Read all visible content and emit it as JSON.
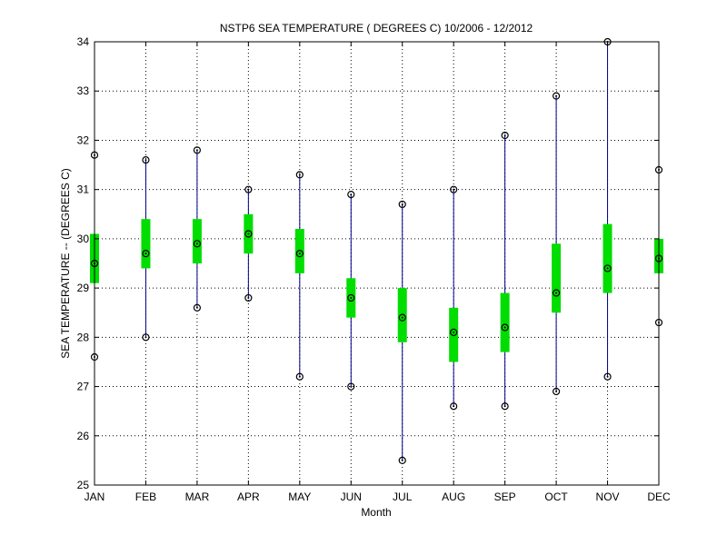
{
  "chart_data": {
    "type": "box",
    "title": "NSTP6  SEA TEMPERATURE ( DEGREES C) 10/2006 - 12/2012",
    "xlabel": "Month",
    "ylabel": "SEA TEMPERATURE -- (DEGREES C)",
    "ylim": [
      25,
      34
    ],
    "yticks": [
      "25",
      "26",
      "27",
      "28",
      "29",
      "30",
      "31",
      "32",
      "33",
      "34"
    ],
    "grid": true,
    "categories": [
      "JAN",
      "FEB",
      "MAR",
      "APR",
      "MAY",
      "JUN",
      "JUL",
      "AUG",
      "SEP",
      "OCT",
      "NOV",
      "DEC"
    ],
    "series": [
      {
        "min": [
          27.6,
          28.0,
          28.6,
          28.8,
          27.2,
          27.0,
          25.5,
          26.6,
          26.6,
          26.9,
          27.2,
          28.3
        ],
        "q1": [
          29.1,
          29.4,
          29.5,
          29.7,
          29.3,
          28.4,
          27.9,
          27.5,
          27.7,
          28.5,
          28.9,
          29.3
        ],
        "median": [
          29.5,
          29.7,
          29.9,
          30.1,
          29.7,
          28.8,
          28.4,
          28.1,
          28.2,
          28.9,
          29.4,
          29.6
        ],
        "q3": [
          30.1,
          30.4,
          30.4,
          30.5,
          30.2,
          29.2,
          29.0,
          28.6,
          28.9,
          29.9,
          30.3,
          30.0
        ],
        "max": [
          31.7,
          31.6,
          31.8,
          31.0,
          31.3,
          30.9,
          30.7,
          31.0,
          32.1,
          32.9,
          34.0,
          31.4
        ]
      }
    ],
    "colors": {
      "whisker": "#00008b",
      "box": "#00dd00",
      "marker": "#000000",
      "grid": "#000000"
    }
  }
}
